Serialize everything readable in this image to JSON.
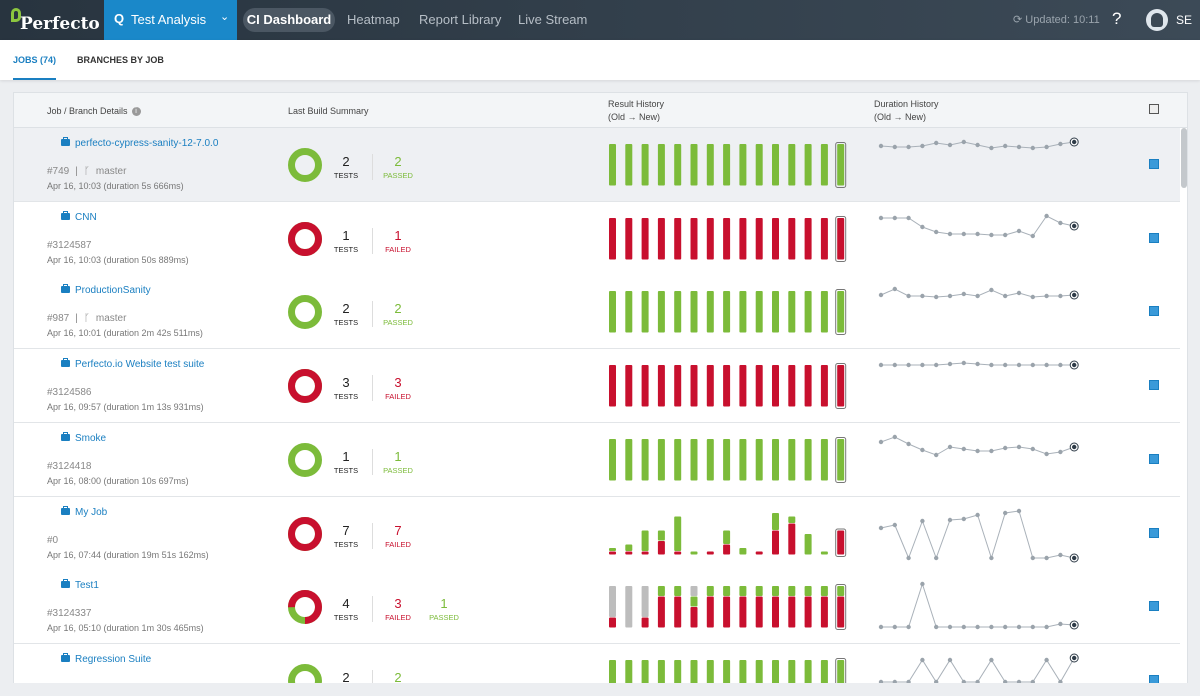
{
  "nav": {
    "logo": "Perfecto",
    "section": "Test Analysis",
    "links": [
      "CI Dashboard",
      "Heatmap",
      "Report Library",
      "Live Stream"
    ],
    "updated": "Updated: 10:11",
    "help": "?",
    "user": "SE"
  },
  "tabs": [
    "JOBS (74)",
    "BRANCHES BY JOB"
  ],
  "table": {
    "headers": {
      "job": "Job / Branch Details",
      "summary": "Last Build Summary",
      "result": "Result History",
      "result_sub": "(Old → New)",
      "duration": "Duration History",
      "duration_sub": "(Old → New)"
    }
  },
  "colors": {
    "passed": "#7cbb3a",
    "failed": "#c8102e",
    "skipped": "#bdbdbd",
    "link": "#1a7fc1",
    "accent": "#1a88c9"
  },
  "rows": [
    {
      "name": "perfecto-cypress-sanity-12-7.0.0",
      "build": "#749",
      "branch": "master",
      "date": "Apr 16, 10:03 (duration 5s 666ms)",
      "tests": 2,
      "failed": 0,
      "passed": 2,
      "tests_label": "TESTS",
      "failed_label": "FAILED",
      "passed_label": "PASSED",
      "scale": 1,
      "history": [
        [
          1,
          0,
          0
        ],
        [
          1,
          0,
          0
        ],
        [
          1,
          0,
          0
        ],
        [
          1,
          0,
          0
        ],
        [
          1,
          0,
          0
        ],
        [
          1,
          0,
          0
        ],
        [
          1,
          0,
          0
        ],
        [
          1,
          0,
          0
        ],
        [
          1,
          0,
          0
        ],
        [
          1,
          0,
          0
        ],
        [
          1,
          0,
          0
        ],
        [
          1,
          0,
          0
        ],
        [
          1,
          0,
          0
        ],
        [
          1,
          0,
          0
        ],
        [
          1,
          0,
          0
        ]
      ],
      "durations": [
        2,
        1,
        1,
        2,
        5,
        3,
        6,
        3,
        0,
        2,
        1,
        0,
        1,
        4,
        6
      ]
    },
    {
      "name": "CNN",
      "build": "#3124587",
      "branch": null,
      "date": "Apr 16, 10:03 (duration 50s 889ms)",
      "tests": 1,
      "failed": 1,
      "passed": 0,
      "tests_label": "TESTS",
      "failed_label": "FAILED",
      "passed_label": "PASSED",
      "scale": 1,
      "history": [
        [
          0,
          1,
          0
        ],
        [
          0,
          1,
          0
        ],
        [
          0,
          1,
          0
        ],
        [
          0,
          1,
          0
        ],
        [
          0,
          1,
          0
        ],
        [
          0,
          1,
          0
        ],
        [
          0,
          1,
          0
        ],
        [
          0,
          1,
          0
        ],
        [
          0,
          1,
          0
        ],
        [
          0,
          1,
          0
        ],
        [
          0,
          1,
          0
        ],
        [
          0,
          1,
          0
        ],
        [
          0,
          1,
          0
        ],
        [
          0,
          1,
          0
        ],
        [
          0,
          1,
          0
        ]
      ],
      "durations": [
        18,
        18,
        18,
        9,
        4,
        2,
        2,
        2,
        1,
        1,
        5,
        0,
        20,
        13,
        10
      ]
    },
    {
      "name": "ProductionSanity",
      "build": "#987",
      "branch": "master",
      "date": "Apr 16, 10:01 (duration 2m 42s 511ms)",
      "tests": 2,
      "failed": 0,
      "passed": 2,
      "tests_label": "TESTS",
      "failed_label": "FAILED",
      "passed_label": "PASSED",
      "scale": 1,
      "history": [
        [
          1,
          0,
          0
        ],
        [
          1,
          0,
          0
        ],
        [
          1,
          0,
          0
        ],
        [
          1,
          0,
          0
        ],
        [
          1,
          0,
          0
        ],
        [
          1,
          0,
          0
        ],
        [
          1,
          0,
          0
        ],
        [
          1,
          0,
          0
        ],
        [
          1,
          0,
          0
        ],
        [
          1,
          0,
          0
        ],
        [
          1,
          0,
          0
        ],
        [
          1,
          0,
          0
        ],
        [
          1,
          0,
          0
        ],
        [
          1,
          0,
          0
        ],
        [
          1,
          0,
          0
        ]
      ],
      "durations": [
        2,
        8,
        1,
        1,
        0,
        1,
        3,
        1,
        7,
        1,
        4,
        0,
        1,
        1,
        2
      ]
    },
    {
      "name": "Perfecto.io Website test suite",
      "build": "#3124586",
      "branch": null,
      "date": "Apr 16, 09:57 (duration 1m 13s 931ms)",
      "tests": 3,
      "failed": 3,
      "passed": 0,
      "tests_label": "TESTS",
      "failed_label": "FAILED",
      "passed_label": "PASSED",
      "scale": 1,
      "history": [
        [
          0,
          1,
          0
        ],
        [
          0,
          1,
          0
        ],
        [
          0,
          1,
          0
        ],
        [
          0,
          1,
          0
        ],
        [
          0,
          1,
          0
        ],
        [
          0,
          1,
          0
        ],
        [
          0,
          1,
          0
        ],
        [
          0,
          1,
          0
        ],
        [
          0,
          1,
          0
        ],
        [
          0,
          1,
          0
        ],
        [
          0,
          1,
          0
        ],
        [
          0,
          1,
          0
        ],
        [
          0,
          1,
          0
        ],
        [
          0,
          1,
          0
        ],
        [
          0,
          1,
          0
        ]
      ],
      "durations": [
        1,
        1,
        1,
        1,
        1,
        2,
        3,
        2,
        1,
        1,
        1,
        1,
        1,
        1,
        1
      ]
    },
    {
      "name": "Smoke",
      "build": "#3124418",
      "branch": null,
      "date": "Apr 16, 08:00 (duration 10s 697ms)",
      "tests": 1,
      "failed": 0,
      "passed": 1,
      "tests_label": "TESTS",
      "failed_label": "FAILED",
      "passed_label": "PASSED",
      "scale": 1,
      "history": [
        [
          1,
          0,
          0
        ],
        [
          1,
          0,
          0
        ],
        [
          1,
          0,
          0
        ],
        [
          1,
          0,
          0
        ],
        [
          1,
          0,
          0
        ],
        [
          1,
          0,
          0
        ],
        [
          1,
          0,
          0
        ],
        [
          1,
          0,
          0
        ],
        [
          1,
          0,
          0
        ],
        [
          1,
          0,
          0
        ],
        [
          1,
          0,
          0
        ],
        [
          1,
          0,
          0
        ],
        [
          1,
          0,
          0
        ],
        [
          1,
          0,
          0
        ],
        [
          1,
          0,
          0
        ]
      ],
      "durations": [
        13,
        18,
        11,
        5,
        0,
        8,
        6,
        4,
        4,
        7,
        8,
        6,
        1,
        3,
        8
      ]
    },
    {
      "name": "My Job",
      "build": "#0",
      "branch": null,
      "date": "Apr 16, 07:44 (duration 19m 51s 162ms)",
      "tests": 7,
      "failed": 7,
      "passed": 0,
      "tests_label": "TESTS",
      "failed_label": "FAILED",
      "passed_label": "PASSED",
      "scale": 12,
      "history": [
        [
          1,
          1,
          0
        ],
        [
          2,
          1,
          0
        ],
        [
          6,
          1,
          0
        ],
        [
          3,
          4,
          0
        ],
        [
          10,
          1,
          0
        ],
        [
          1,
          0,
          0
        ],
        [
          0,
          1,
          0
        ],
        [
          4,
          3,
          0
        ],
        [
          2,
          0,
          0
        ],
        [
          0,
          1,
          0
        ],
        [
          5,
          7,
          0
        ],
        [
          2,
          9,
          0
        ],
        [
          6,
          0,
          0
        ],
        [
          1,
          0,
          0
        ],
        [
          0,
          7,
          0
        ]
      ],
      "durations": [
        30,
        33,
        0,
        37,
        0,
        38,
        39,
        43,
        0,
        45,
        47,
        0,
        0,
        3,
        0
      ]
    },
    {
      "name": "Test1",
      "build": "#3124337",
      "branch": null,
      "date": "Apr 16, 05:10 (duration 1m 30s 465ms)",
      "tests": 4,
      "failed": 3,
      "passed": 1,
      "tests_label": "TESTS",
      "failed_label": "FAILED",
      "passed_label": "PASSED",
      "scale": 4,
      "history": [
        [
          0,
          1,
          3
        ],
        [
          0,
          0,
          4
        ],
        [
          0,
          1,
          3
        ],
        [
          1,
          3,
          0
        ],
        [
          1,
          3,
          0
        ],
        [
          1,
          2,
          1
        ],
        [
          1,
          3,
          0
        ],
        [
          1,
          3,
          0
        ],
        [
          1,
          3,
          0
        ],
        [
          1,
          3,
          0
        ],
        [
          1,
          3,
          0
        ],
        [
          1,
          3,
          0
        ],
        [
          1,
          3,
          0
        ],
        [
          1,
          3,
          0
        ],
        [
          1,
          3,
          0
        ]
      ],
      "durations": [
        0,
        0,
        0,
        43,
        0,
        0,
        0,
        0,
        0,
        0,
        0,
        0,
        0,
        3,
        2
      ]
    },
    {
      "name": "Regression Suite",
      "build": "",
      "branch": null,
      "date": "",
      "tests": 2,
      "failed": 0,
      "passed": 2,
      "tests_label": "TESTS",
      "failed_label": "FAILED",
      "passed_label": "PASSED",
      "scale": 1,
      "history": [
        [
          1,
          0,
          0
        ],
        [
          1,
          0,
          0
        ],
        [
          1,
          0,
          0
        ],
        [
          1,
          0,
          0
        ],
        [
          1,
          0,
          0
        ],
        [
          1,
          0,
          0
        ],
        [
          1,
          0,
          0
        ],
        [
          1,
          0,
          0
        ],
        [
          1,
          0,
          0
        ],
        [
          1,
          0,
          0
        ],
        [
          1,
          0,
          0
        ],
        [
          1,
          0,
          0
        ],
        [
          1,
          0,
          0
        ],
        [
          1,
          0,
          0
        ],
        [
          1,
          0,
          0
        ]
      ],
      "durations": [
        0,
        0,
        0,
        22,
        0,
        22,
        0,
        0,
        22,
        0,
        0,
        0,
        22,
        0,
        24
      ]
    }
  ]
}
